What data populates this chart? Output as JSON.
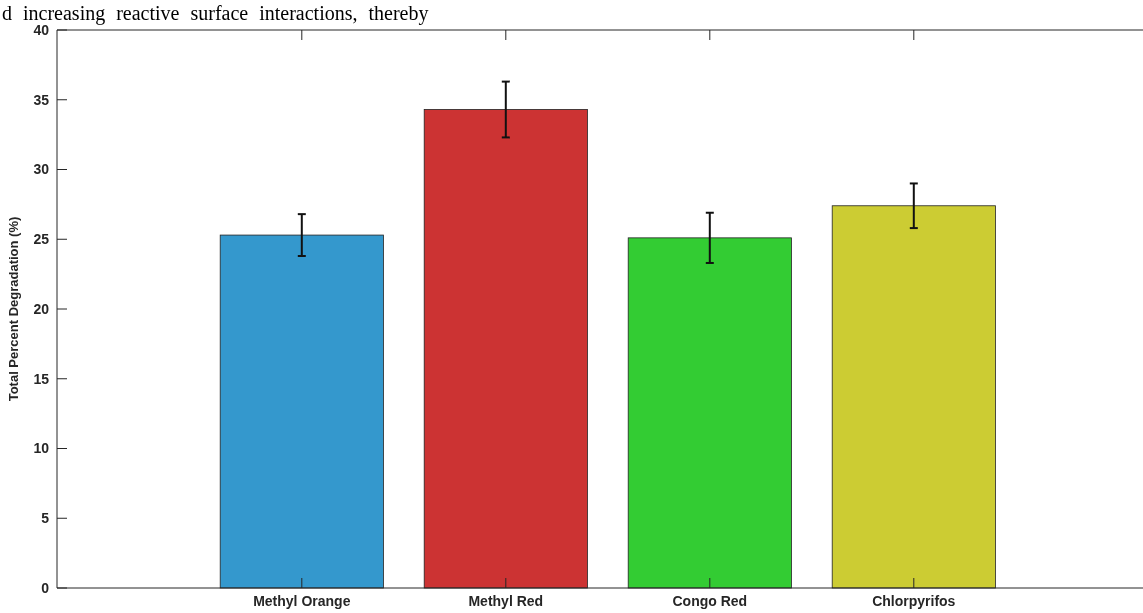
{
  "chart_data": {
    "type": "bar",
    "ylabel": "Total Percent Degradation (%)",
    "annotations": [
      "d increasing reactive surface interactions, thereby"
    ],
    "categories": [
      "Methyl Orange",
      "Methyl Red",
      "Congo Red",
      "Chlorpyrifos"
    ],
    "values": [
      25.3,
      34.3,
      25.1,
      27.4
    ],
    "colors": [
      "#3498cd",
      "#cc3333",
      "#33cc33",
      "#cccc33"
    ],
    "errors": [
      1.5,
      2.0,
      1.8,
      1.6
    ],
    "ylim": [
      0,
      40
    ],
    "yticks": [
      0,
      5,
      10,
      15,
      20,
      25,
      30,
      35,
      40
    ],
    "grid": false
  }
}
